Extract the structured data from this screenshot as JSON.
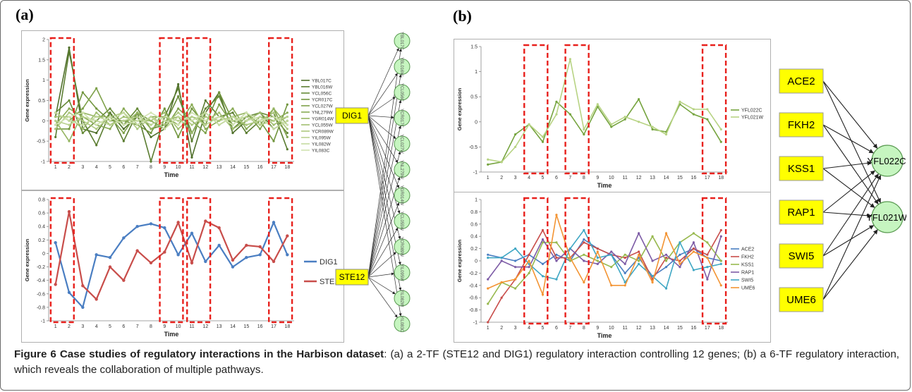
{
  "panel_a_label": "(a)",
  "panel_b_label": "(b)",
  "caption": {
    "bold": "Figure 6 Case studies of regulatory interactions in the Harbison dataset",
    "rest": ": (a) a 2-TF (STE12 and DIG1) regulatory interaction controlling 12 genes; (b) a 6-TF regulatory interaction, which reveals the collaboration of multiple pathways."
  },
  "colors": {
    "tf_box": "#ffff00",
    "gene_node": "#c6f5c0",
    "highlight": "#e8201c",
    "blue": "#4a7ec2",
    "red": "#c84d4a"
  },
  "chart_data": [
    {
      "type": "line",
      "id": "a_top",
      "xlabel": "Time",
      "ylabel": "Gene expression",
      "x": [
        1,
        2,
        3,
        4,
        5,
        6,
        7,
        8,
        9,
        10,
        11,
        12,
        13,
        14,
        15,
        16,
        17,
        18
      ],
      "ylim": [
        -1,
        2
      ],
      "yticks": [
        -1,
        -0.5,
        0,
        0.5,
        1,
        1.5,
        2
      ],
      "highlight_x": [
        [
          1,
          2
        ],
        [
          9,
          10
        ],
        [
          11,
          12
        ],
        [
          17,
          18
        ]
      ],
      "legend_position": "right",
      "series": [
        {
          "name": "YBL017C",
          "color": "#4f6f2a",
          "values": [
            0.1,
            1.8,
            -0.2,
            -0.3,
            0.2,
            -0.2,
            0.1,
            -0.4,
            -0.2,
            0.9,
            -0.9,
            0.2,
            0.7,
            -0.3,
            0.0,
            0.2,
            -0.2,
            0.0
          ]
        },
        {
          "name": "YBL016W",
          "color": "#5b7d31",
          "values": [
            -0.4,
            1.7,
            0.0,
            -0.6,
            0.2,
            -0.5,
            0.2,
            -1.0,
            0.1,
            0.8,
            -0.5,
            0.5,
            0.1,
            0.2,
            -0.3,
            0.0,
            0.2,
            -0.7
          ]
        },
        {
          "name": "YCL056C",
          "color": "#668a38",
          "values": [
            0.2,
            0.5,
            -0.3,
            0.0,
            0.3,
            -0.1,
            0.3,
            -0.2,
            -0.1,
            0.6,
            -0.3,
            0.3,
            0.6,
            -0.2,
            0.1,
            0.2,
            0.1,
            -0.3
          ]
        },
        {
          "name": "YCR017C",
          "color": "#72963f",
          "values": [
            -0.2,
            -0.2,
            0.7,
            0.3,
            0.0,
            0.0,
            -0.1,
            -0.3,
            0.3,
            -0.4,
            0.3,
            -0.1,
            0.7,
            0.0,
            -0.1,
            0.0,
            -0.5,
            0.4
          ]
        },
        {
          "name": "YCL027W",
          "color": "#7ea14a",
          "values": [
            0.2,
            0.0,
            0.3,
            0.8,
            0.1,
            -0.3,
            0.2,
            0.0,
            -0.2,
            0.3,
            0.0,
            -0.3,
            0.4,
            -0.1,
            0.2,
            -0.2,
            0.3,
            -0.4
          ]
        },
        {
          "name": "YNL279W",
          "color": "#89ab55",
          "values": [
            -0.1,
            0.3,
            0.1,
            -0.1,
            -0.2,
            0.3,
            -0.1,
            0.1,
            0.1,
            -0.1,
            0.4,
            -0.2,
            0.0,
            0.3,
            -0.2,
            0.1,
            0.0,
            0.2
          ]
        },
        {
          "name": "YGR014W",
          "color": "#95b562",
          "values": [
            0.0,
            -0.5,
            0.2,
            0.1,
            0.1,
            -0.1,
            0.2,
            -0.2,
            0.0,
            0.1,
            -0.3,
            0.2,
            -0.1,
            0.1,
            0.2,
            -0.1,
            0.3,
            -0.1
          ]
        },
        {
          "name": "YCL055W",
          "color": "#a1bf70",
          "values": [
            0.1,
            0.1,
            -0.2,
            0.2,
            -0.1,
            0.1,
            0.0,
            0.0,
            0.2,
            -0.2,
            0.1,
            0.0,
            0.2,
            -0.2,
            0.0,
            0.2,
            -0.1,
            0.1
          ]
        },
        {
          "name": "YCR089W",
          "color": "#adc87f",
          "values": [
            -0.2,
            0.2,
            0.0,
            -0.2,
            0.1,
            0.2,
            -0.2,
            0.1,
            -0.1,
            0.2,
            -0.1,
            0.1,
            0.0,
            0.1,
            -0.1,
            0.0,
            0.2,
            -0.2
          ]
        },
        {
          "name": "YIL095W",
          "color": "#b9d18f",
          "values": [
            0.0,
            -0.1,
            0.1,
            0.0,
            -0.1,
            0.0,
            0.1,
            -0.1,
            0.1,
            0.0,
            0.1,
            -0.1,
            0.1,
            0.0,
            0.1,
            -0.1,
            0.0,
            0.1
          ]
        },
        {
          "name": "YIL082W",
          "color": "#c5daa0",
          "values": [
            0.2,
            0.0,
            -0.1,
            0.1,
            0.0,
            0.2,
            -0.1,
            0.1,
            -0.2,
            0.1,
            0.0,
            0.2,
            -0.1,
            0.1,
            0.0,
            0.1,
            -0.2,
            0.0
          ]
        },
        {
          "name": "YIL083C",
          "color": "#d1e3b1",
          "values": [
            -0.1,
            0.1,
            0.2,
            -0.1,
            0.1,
            -0.1,
            0.0,
            0.2,
            0.0,
            -0.1,
            0.2,
            0.0,
            0.1,
            -0.1,
            0.2,
            0.0,
            0.1,
            -0.1
          ]
        }
      ]
    },
    {
      "type": "line",
      "id": "a_bottom",
      "xlabel": "Time",
      "ylabel": "Gene expression",
      "x": [
        1,
        2,
        3,
        4,
        5,
        6,
        7,
        8,
        9,
        10,
        11,
        12,
        13,
        14,
        15,
        16,
        17,
        18
      ],
      "ylim": [
        -1,
        0.8
      ],
      "yticks": [
        -1,
        -0.8,
        -0.6,
        -0.4,
        -0.2,
        0,
        0.2,
        0.4,
        0.6,
        0.8
      ],
      "highlight_x": [
        [
          1,
          2
        ],
        [
          9,
          10
        ],
        [
          11,
          12
        ],
        [
          17,
          18
        ]
      ],
      "legend_position": "right",
      "series": [
        {
          "name": "DIG1",
          "color": "#4a7ec2",
          "values": [
            0.16,
            -0.58,
            -0.8,
            -0.02,
            -0.06,
            0.23,
            0.4,
            0.44,
            0.38,
            -0.02,
            0.3,
            -0.12,
            0.12,
            -0.2,
            -0.06,
            -0.02,
            0.46,
            -0.02
          ]
        },
        {
          "name": "STE12",
          "color": "#c84d4a",
          "values": [
            -0.46,
            0.62,
            -0.48,
            -0.68,
            -0.2,
            -0.4,
            0.04,
            -0.14,
            0.02,
            0.46,
            -0.14,
            0.48,
            0.38,
            -0.1,
            0.12,
            0.1,
            -0.12,
            0.26
          ]
        }
      ]
    },
    {
      "type": "line",
      "id": "b_top",
      "xlabel": "Time",
      "ylabel": "Gene expression",
      "x": [
        1,
        2,
        3,
        4,
        5,
        6,
        7,
        8,
        9,
        10,
        11,
        12,
        13,
        14,
        15,
        16,
        17,
        18
      ],
      "ylim": [
        -1,
        1.5
      ],
      "yticks": [
        -1,
        -0.5,
        0,
        0.5,
        1,
        1.5
      ],
      "highlight_x": [
        [
          4,
          5
        ],
        [
          7,
          8
        ],
        [
          17,
          18
        ]
      ],
      "legend_position": "right",
      "series": [
        {
          "name": "YFL022C",
          "color": "#76a43f",
          "values": [
            -0.85,
            -0.8,
            -0.25,
            -0.05,
            -0.4,
            0.4,
            0.15,
            -0.25,
            0.3,
            -0.1,
            0.05,
            0.45,
            -0.15,
            -0.2,
            0.35,
            0.15,
            0.05,
            -0.4
          ]
        },
        {
          "name": "YFL021W",
          "color": "#b7d383",
          "values": [
            -0.75,
            -0.8,
            -0.5,
            -0.05,
            -0.3,
            0.15,
            1.25,
            -0.15,
            0.35,
            -0.05,
            0.1,
            0.0,
            -0.1,
            -0.25,
            0.4,
            0.25,
            0.25,
            -0.15
          ]
        }
      ]
    },
    {
      "type": "line",
      "id": "b_bottom",
      "xlabel": "Time",
      "ylabel": "Gene expression",
      "x": [
        1,
        2,
        3,
        4,
        5,
        6,
        7,
        8,
        9,
        10,
        11,
        12,
        13,
        14,
        15,
        16,
        17,
        18
      ],
      "ylim": [
        -1,
        1
      ],
      "yticks": [
        -1,
        -0.8,
        -0.6,
        -0.4,
        -0.2,
        0,
        0.2,
        0.4,
        0.6,
        0.8,
        1
      ],
      "highlight_x": [
        [
          4,
          5
        ],
        [
          7,
          8
        ],
        [
          17,
          18
        ]
      ],
      "legend_position": "right",
      "series": [
        {
          "name": "ACE2",
          "color": "#4a7ec2",
          "values": [
            0.1,
            0.05,
            0.0,
            0.1,
            -0.05,
            0.1,
            0.0,
            0.35,
            0.2,
            0.1,
            -0.2,
            0.05,
            -0.25,
            -0.1,
            0.1,
            0.2,
            0.05,
            0.0
          ]
        },
        {
          "name": "FKH2",
          "color": "#c84d4a",
          "values": [
            -1.0,
            -0.6,
            -0.3,
            0.1,
            0.5,
            0.05,
            0.05,
            0.3,
            0.2,
            0.1,
            0.05,
            0.15,
            -0.3,
            0.05,
            0.0,
            0.2,
            0.1,
            0.5
          ]
        },
        {
          "name": "KSS1",
          "color": "#98b94f",
          "values": [
            -0.7,
            -0.35,
            -0.45,
            -0.2,
            0.3,
            0.3,
            0.0,
            0.1,
            0.0,
            -0.1,
            0.1,
            0.0,
            0.4,
            0.0,
            0.3,
            0.45,
            0.3,
            0.0
          ]
        },
        {
          "name": "RAP1",
          "color": "#7d5ca6",
          "values": [
            -0.3,
            0.0,
            -0.1,
            -0.1,
            0.35,
            0.0,
            0.2,
            0.0,
            -0.05,
            0.15,
            -0.05,
            0.45,
            0.0,
            0.1,
            -0.1,
            0.3,
            -0.3,
            0.4
          ]
        },
        {
          "name": "SWI5",
          "color": "#3fa7c4",
          "values": [
            0.05,
            0.05,
            0.2,
            -0.05,
            -0.25,
            -0.3,
            0.2,
            0.5,
            0.05,
            0.1,
            -0.35,
            -0.05,
            -0.25,
            -0.45,
            0.3,
            -0.15,
            -0.1,
            -0.05
          ]
        },
        {
          "name": "UME6",
          "color": "#f39433",
          "values": [
            -0.45,
            -0.35,
            -0.3,
            0.0,
            -0.55,
            0.75,
            0.05,
            -0.35,
            0.15,
            -0.4,
            -0.4,
            0.1,
            -0.35,
            0.45,
            -0.05,
            0.15,
            0.05,
            -0.4
          ]
        }
      ]
    }
  ],
  "network_a": {
    "tfs": [
      "DIG1",
      "STE12"
    ],
    "genes": [
      "YBL017C",
      "YBL016W",
      "YCL056C",
      "YCR017C",
      "YCL027W",
      "YNL279W",
      "YGR014W",
      "YCL055W",
      "YCR089W",
      "YIL095W",
      "YIL082W",
      "YIL083C"
    ]
  },
  "network_b": {
    "tfs": [
      "ACE2",
      "FKH2",
      "KSS1",
      "RAP1",
      "SWI5",
      "UME6"
    ],
    "genes": [
      "YFL022C",
      "YFL021W"
    ]
  }
}
